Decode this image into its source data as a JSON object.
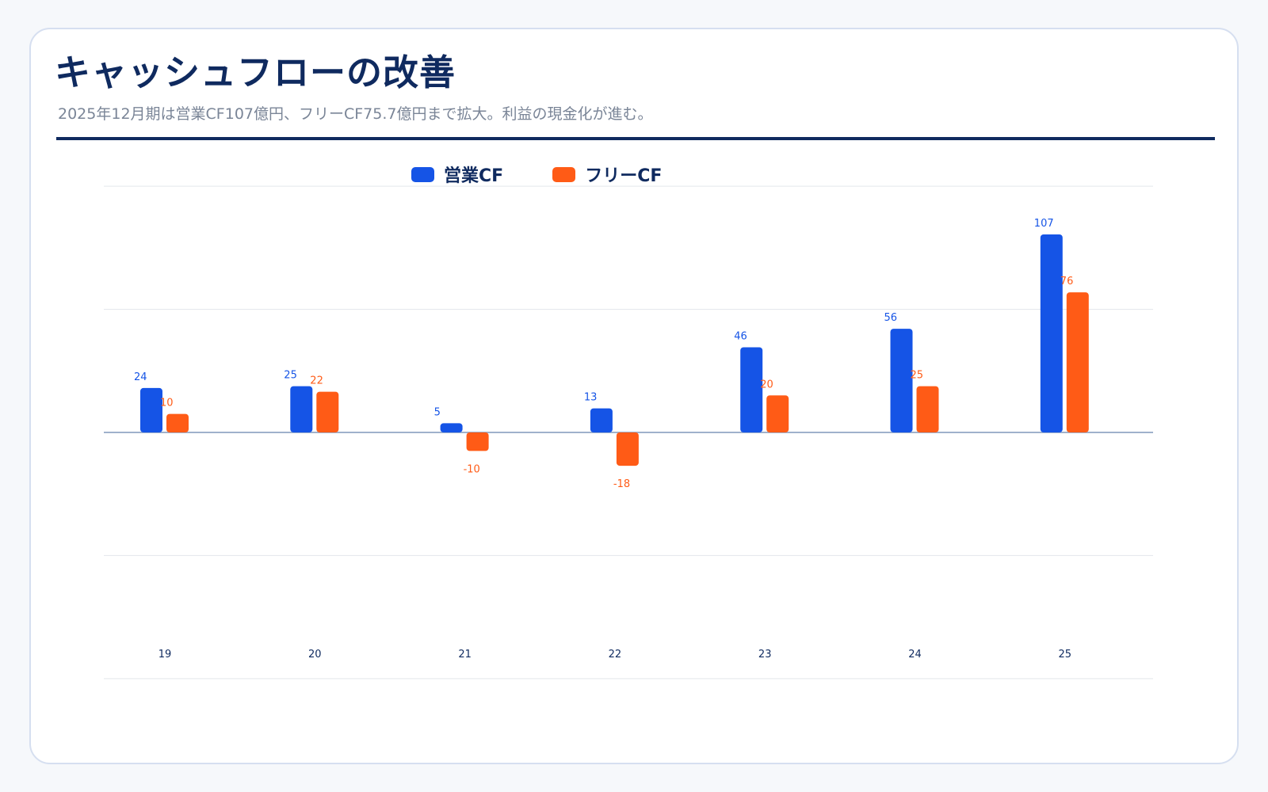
{
  "header": {
    "title": "キャッシュフローの改善",
    "subtitle": "2025年12月期は営業CF107億円、フリーCF75.7億円まで拡大。利益の現金化が進む。"
  },
  "colors": {
    "operating": "#1554e6",
    "free": "#ff5b16",
    "grid": "#e3e6eb",
    "zero_line": "#9fb1cc",
    "tick_text": "#0f2a5f"
  },
  "chart_data": {
    "type": "bar",
    "categories": [
      "19",
      "20",
      "21",
      "22",
      "23",
      "24",
      "25"
    ],
    "series": [
      {
        "name": "営業CF",
        "values": [
          24,
          25,
          5,
          13,
          46,
          56,
          107
        ],
        "labels": [
          "24",
          "25",
          "5",
          "13",
          "46",
          "56",
          "107"
        ]
      },
      {
        "name": "フリーCF",
        "values": [
          10,
          22,
          -10,
          -18,
          20,
          25,
          75.7
        ],
        "labels": [
          "10",
          "22",
          "-10",
          "-18",
          "20",
          "25",
          "76"
        ]
      }
    ],
    "ylim": [
      -133,
      133
    ],
    "grid": true,
    "legend_position": "top"
  }
}
